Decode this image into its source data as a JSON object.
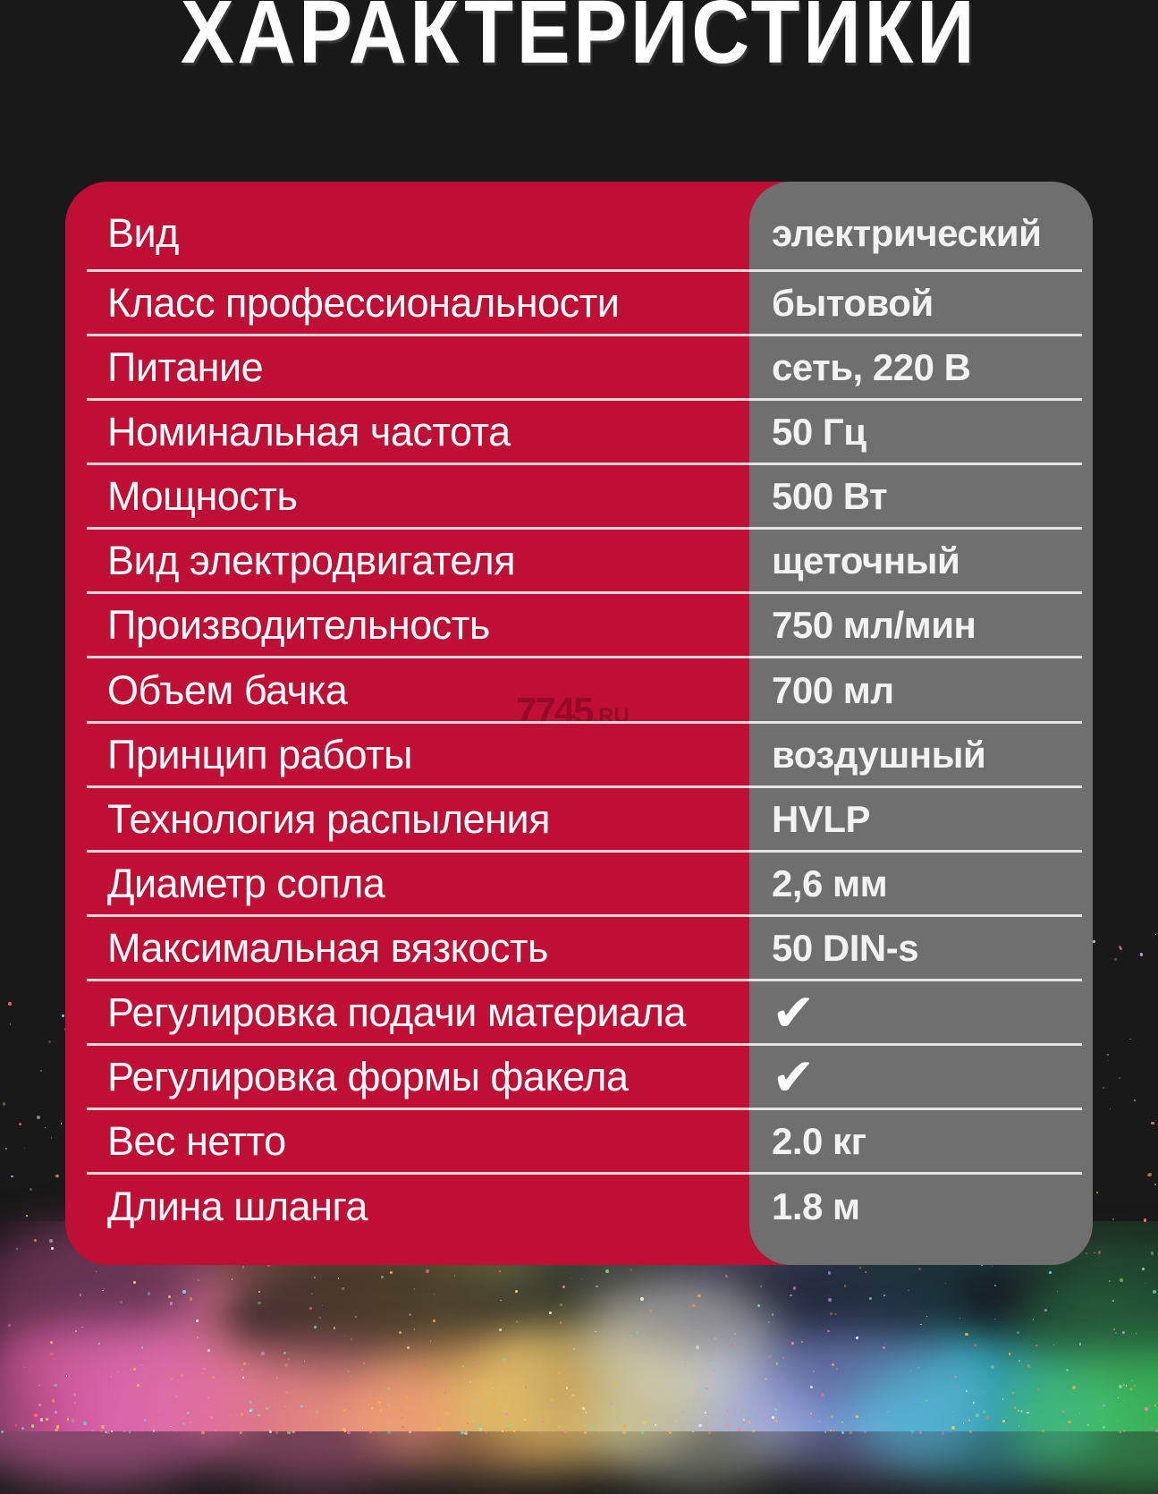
{
  "page": {
    "title": "ХАРАКТЕРИСТИКИ"
  },
  "watermark": {
    "number": "7745",
    "domain": ".RU"
  },
  "colors": {
    "accent_red": "#c00f34",
    "panel_gray": "#6f6f6f",
    "background": "#191919",
    "divider": "#ffffff",
    "label_text": "#ffffff",
    "value_text": "#f2f2f2"
  },
  "table": {
    "rows": [
      {
        "label": "Вид",
        "value": "электрический",
        "vclass": "cell-value"
      },
      {
        "label": "Класс профессиональности",
        "value": "бытовой",
        "vclass": "cell-value"
      },
      {
        "label": "Питание",
        "value": "сеть, 220 В",
        "vclass": "cell-value"
      },
      {
        "label": "Номинальная частота",
        "value": "50 Гц",
        "vclass": "cell-value"
      },
      {
        "label": "Мощность",
        "value": "500 Вт",
        "vclass": "cell-value"
      },
      {
        "label": "Вид электродвигателя",
        "value": "щеточный",
        "vclass": "cell-value"
      },
      {
        "label": "Производительность",
        "value": "750 мл/мин",
        "vclass": "cell-value"
      },
      {
        "label": "Объем бачка",
        "value": "700 мл",
        "vclass": "cell-value"
      },
      {
        "label": "Принцип работы",
        "value": "воздушный",
        "vclass": "cell-value"
      },
      {
        "label": "Технология распыления",
        "value": "HVLP",
        "vclass": "cell-value"
      },
      {
        "label": "Диаметр сопла",
        "value": "2,6 мм",
        "vclass": "cell-value"
      },
      {
        "label": "Максимальная вязкость",
        "value": "50 DIN-s",
        "vclass": "cell-value"
      },
      {
        "label": "Регулировка подачи материала",
        "value": "✔",
        "vclass": "cell-value check"
      },
      {
        "label": "Регулировка формы факела",
        "value": "✔",
        "vclass": "cell-value check"
      },
      {
        "label": "Вес нетто",
        "value": "2.0 кг",
        "vclass": "cell-value"
      },
      {
        "label": "Длина шланга",
        "value": "1.8 м",
        "vclass": "cell-value"
      }
    ]
  }
}
